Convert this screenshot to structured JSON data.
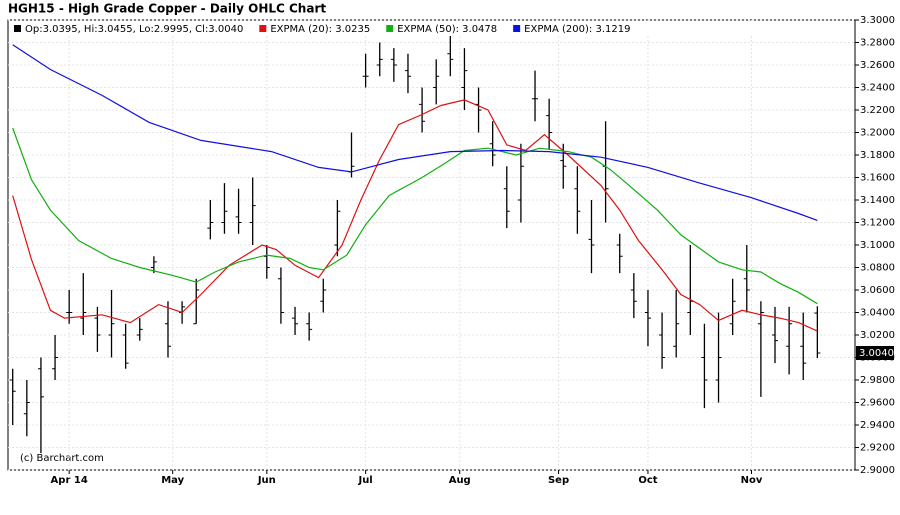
{
  "chart_data": {
    "type": "ohlc",
    "title": "HGH15 - High Grade Copper - Daily OHLC Chart",
    "copyright": "(c) Barchart.com",
    "price_label": "3.0040",
    "bar_name": "Op:3.0395, Hi:3.0455, Lo:2.9995, Cl:3.0040",
    "bar_color": "#000000",
    "x": [
      0,
      3,
      6,
      9,
      12,
      15,
      18,
      21,
      24,
      27,
      30,
      33,
      36,
      39,
      42,
      45,
      48,
      51,
      54,
      57,
      60,
      63,
      66,
      69,
      72,
      75,
      78,
      81,
      84,
      87,
      90,
      93,
      96,
      99,
      102,
      105,
      108,
      111,
      114,
      117,
      120,
      123,
      126,
      129,
      132,
      135,
      138,
      141,
      144,
      147,
      150,
      153,
      156,
      159,
      162,
      165,
      168,
      171
    ],
    "open": [
      2.98,
      2.95,
      2.99,
      2.99,
      3.04,
      3.035,
      3.035,
      3.02,
      3.02,
      3.02,
      3.08,
      3.03,
      3.04,
      3.03,
      3.115,
      3.12,
      3.125,
      3.12,
      3.09,
      3.07,
      3.035,
      3.03,
      3.05,
      3.1,
      3.165,
      3.25,
      3.26,
      3.265,
      3.255,
      3.225,
      3.24,
      3.27,
      3.24,
      3.225,
      3.19,
      3.15,
      3.14,
      3.23,
      3.215,
      3.175,
      3.15,
      3.105,
      3.17,
      3.1,
      3.06,
      3.04,
      3.02,
      3.01,
      3.04,
      3.0,
      2.98,
      3.03,
      3.07,
      3.03,
      3.02,
      3.01,
      3.01,
      3.0395
    ],
    "high": [
      2.99,
      2.98,
      3.0,
      3.02,
      3.06,
      3.075,
      3.045,
      3.06,
      3.03,
      3.035,
      3.09,
      3.05,
      3.05,
      3.07,
      3.14,
      3.155,
      3.15,
      3.16,
      3.1,
      3.08,
      3.045,
      3.04,
      3.07,
      3.14,
      3.2,
      3.27,
      3.28,
      3.275,
      3.27,
      3.24,
      3.265,
      3.29,
      3.275,
      3.24,
      3.21,
      3.17,
      3.19,
      3.255,
      3.23,
      3.19,
      3.17,
      3.14,
      3.21,
      3.11,
      3.075,
      3.06,
      3.04,
      3.06,
      3.1,
      3.03,
      3.04,
      3.07,
      3.1,
      3.05,
      3.045,
      3.045,
      3.04,
      3.0455
    ],
    "low": [
      2.94,
      2.93,
      2.915,
      2.98,
      3.03,
      3.02,
      3.005,
      3.0,
      2.99,
      3.015,
      3.075,
      3.0,
      3.03,
      3.03,
      3.105,
      3.11,
      3.11,
      3.1,
      3.07,
      3.03,
      3.02,
      3.015,
      3.04,
      3.09,
      3.16,
      3.24,
      3.25,
      3.245,
      3.235,
      3.2,
      3.225,
      3.25,
      3.22,
      3.2,
      3.17,
      3.115,
      3.12,
      3.21,
      3.185,
      3.15,
      3.11,
      3.075,
      3.12,
      3.075,
      3.035,
      3.01,
      2.99,
      3.0,
      3.02,
      2.955,
      2.96,
      3.02,
      3.04,
      2.965,
      2.995,
      2.985,
      2.98,
      2.9995
    ],
    "close": [
      2.97,
      2.96,
      2.965,
      3.0,
      3.04,
      3.04,
      3.02,
      3.03,
      2.995,
      3.025,
      3.085,
      3.01,
      3.045,
      3.06,
      3.12,
      3.13,
      3.12,
      3.135,
      3.08,
      3.04,
      3.03,
      3.025,
      3.06,
      3.13,
      3.17,
      3.25,
      3.265,
      3.26,
      3.25,
      3.21,
      3.25,
      3.265,
      3.255,
      3.22,
      3.18,
      3.13,
      3.17,
      3.23,
      3.2,
      3.17,
      3.13,
      3.1,
      3.15,
      3.09,
      3.05,
      3.035,
      3.0,
      3.03,
      3.05,
      2.98,
      3.0,
      3.05,
      3.06,
      3.04,
      3.015,
      3.03,
      2.995,
      3.004
    ],
    "series": [
      {
        "name": "EXPMA (20): 3.0235",
        "color": "#e01010",
        "x": [
          0,
          4,
          8,
          11,
          19,
          25,
          31,
          36,
          40,
          46,
          53,
          56,
          60,
          65,
          70,
          74,
          78,
          82,
          87,
          91,
          96,
          101,
          105,
          109,
          113,
          118,
          125,
          129,
          133,
          138,
          142,
          146,
          150,
          155,
          159,
          163,
          167,
          171
        ],
        "values": [
          3.144,
          3.087,
          3.042,
          3.035,
          3.038,
          3.031,
          3.047,
          3.04,
          3.056,
          3.082,
          3.1,
          3.096,
          3.082,
          3.071,
          3.1,
          3.14,
          3.176,
          3.207,
          3.216,
          3.224,
          3.229,
          3.22,
          3.189,
          3.184,
          3.198,
          3.18,
          3.153,
          3.131,
          3.104,
          3.078,
          3.056,
          3.047,
          3.033,
          3.042,
          3.038,
          3.035,
          3.031,
          3.0235
        ]
      },
      {
        "name": "EXPMA (50): 3.0478",
        "color": "#10b010",
        "x": [
          0,
          4,
          8,
          14,
          21,
          27,
          34,
          39,
          43,
          48,
          54,
          59,
          63,
          66,
          71,
          75,
          80,
          87,
          92,
          96,
          101,
          107,
          112,
          118,
          123,
          127,
          131,
          137,
          142,
          146,
          150,
          155,
          159,
          163,
          167,
          171
        ],
        "values": [
          3.204,
          3.158,
          3.131,
          3.104,
          3.088,
          3.08,
          3.073,
          3.067,
          3.076,
          3.085,
          3.091,
          3.088,
          3.08,
          3.078,
          3.091,
          3.118,
          3.144,
          3.16,
          3.173,
          3.184,
          3.186,
          3.18,
          3.186,
          3.183,
          3.178,
          3.167,
          3.153,
          3.131,
          3.109,
          3.097,
          3.085,
          3.078,
          3.076,
          3.066,
          3.058,
          3.0478
        ]
      },
      {
        "name": "EXPMA (200): 3.1219",
        "color": "#1010e0",
        "x": [
          0,
          8,
          19,
          29,
          40,
          55,
          65,
          72,
          82,
          93,
          104,
          114,
          125,
          135,
          146,
          157,
          167,
          171
        ],
        "values": [
          3.278,
          3.256,
          3.233,
          3.209,
          3.193,
          3.183,
          3.169,
          3.165,
          3.176,
          3.183,
          3.184,
          3.183,
          3.178,
          3.169,
          3.155,
          3.142,
          3.128,
          3.1219
        ]
      }
    ],
    "xlim": [
      -1,
      179
    ],
    "xticks": [
      {
        "value": 12,
        "label": "Apr 14"
      },
      {
        "value": 34,
        "label": "May"
      },
      {
        "value": 54,
        "label": "Jun"
      },
      {
        "value": 75,
        "label": "Jul"
      },
      {
        "value": 95,
        "label": "Aug"
      },
      {
        "value": 116,
        "label": "Sep"
      },
      {
        "value": 135,
        "label": "Oct"
      },
      {
        "value": 157,
        "label": "Nov"
      }
    ],
    "ylim": [
      2.9,
      3.3
    ],
    "yticks": [
      {
        "value": 2.9,
        "label": "2.9000"
      },
      {
        "value": 2.92,
        "label": "2.9200"
      },
      {
        "value": 2.94,
        "label": "2.9400"
      },
      {
        "value": 2.96,
        "label": "2.9600"
      },
      {
        "value": 2.98,
        "label": "2.9800"
      },
      {
        "value": 3.0,
        "label": "3.0000"
      },
      {
        "value": 3.02,
        "label": "3.0200"
      },
      {
        "value": 3.04,
        "label": "3.0400"
      },
      {
        "value": 3.06,
        "label": "3.0600"
      },
      {
        "value": 3.08,
        "label": "3.0800"
      },
      {
        "value": 3.1,
        "label": "3.1000"
      },
      {
        "value": 3.12,
        "label": "3.1200"
      },
      {
        "value": 3.14,
        "label": "3.1400"
      },
      {
        "value": 3.16,
        "label": "3.1600"
      },
      {
        "value": 3.18,
        "label": "3.1800"
      },
      {
        "value": 3.2,
        "label": "3.2000"
      },
      {
        "value": 3.22,
        "label": "3.2200"
      },
      {
        "value": 3.24,
        "label": "3.2400"
      },
      {
        "value": 3.26,
        "label": "3.2600"
      },
      {
        "value": 3.28,
        "label": "3.2800"
      },
      {
        "value": 3.3,
        "label": "3.3000"
      }
    ],
    "grid": true
  }
}
